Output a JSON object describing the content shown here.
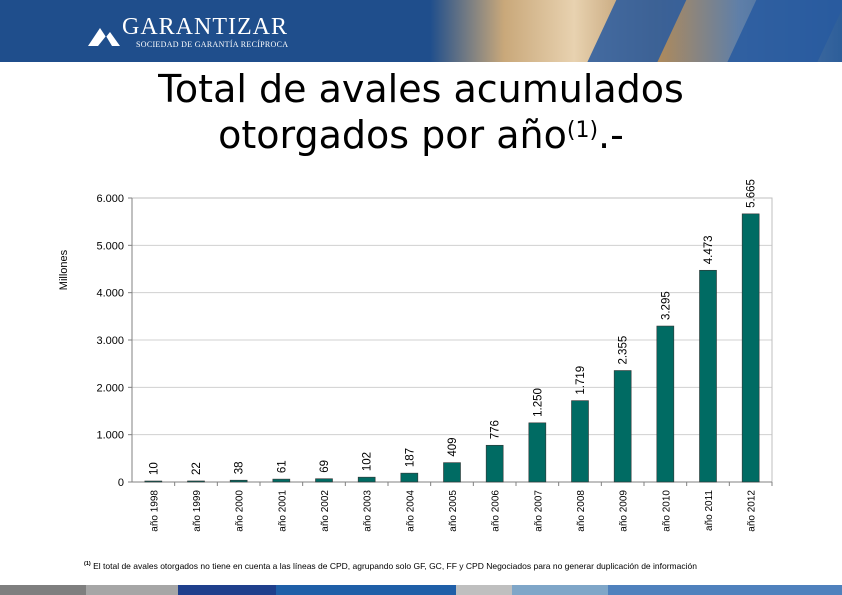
{
  "header": {
    "brand_name": "GARANTIZAR",
    "brand_subtitle": "SOCIEDAD DE GARANTÍA RECÍPROCA",
    "logo_icon": "mountain-peaks-icon",
    "banner_color": "#1f4e8c"
  },
  "slide": {
    "title_line1": "Total de avales acumulados",
    "title_line2": "otorgados por año",
    "title_sup": "(1)",
    "title_suffix": ".-",
    "footnote_sup": "(1)",
    "footnote_text": "El total de avales otorgados no tiene en cuenta a las líneas de CPD, agrupando solo GF, GC, FF y CPD Negociados para no generar duplicación de información"
  },
  "chart_data": {
    "type": "bar",
    "title": "",
    "xlabel": "",
    "ylabel": "Millones",
    "ylim": [
      0,
      6000
    ],
    "yticks": [
      0,
      1000,
      2000,
      3000,
      4000,
      5000,
      6000
    ],
    "ytick_labels": [
      "0",
      "1.000",
      "2.000",
      "3.000",
      "4.000",
      "5.000",
      "6.000"
    ],
    "grid": true,
    "legend": "none",
    "bar_color": "#006b63",
    "categories": [
      "año 1998",
      "año 1999",
      "año 2000",
      "año 2001",
      "año 2002",
      "año 2003",
      "año 2004",
      "año 2005",
      "año 2006",
      "año 2007",
      "año 2008",
      "año 2009",
      "año 2010",
      "año 2011",
      "año 2012"
    ],
    "values": [
      10,
      22,
      38,
      61,
      69,
      102,
      187,
      409,
      776,
      1250,
      1719,
      2355,
      3295,
      4473,
      5665
    ],
    "value_labels": [
      "10",
      "22",
      "38",
      "61",
      "69",
      "102",
      "187",
      "409",
      "776",
      "1.250",
      "1.719",
      "2.355",
      "3.295",
      "4.473",
      "5.665"
    ]
  },
  "bottom_bar_colors": [
    "#7f7f7f",
    "#a6a6a6",
    "#1f3f8c",
    "#1f5fa8",
    "#bfbfbf",
    "#7fa6c8",
    "#4f81bd"
  ]
}
